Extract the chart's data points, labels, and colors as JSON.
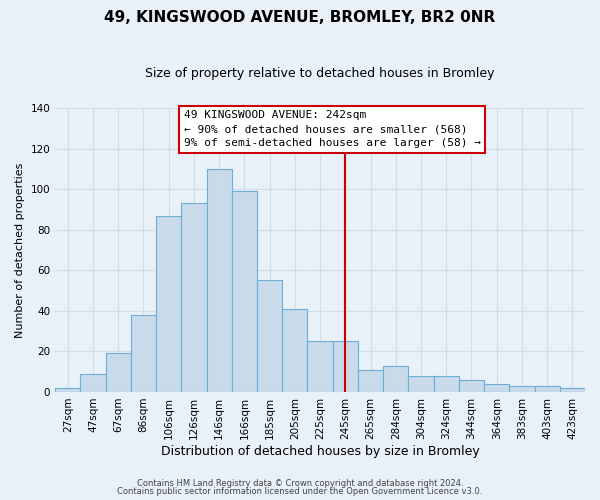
{
  "title": "49, KINGSWOOD AVENUE, BROMLEY, BR2 0NR",
  "subtitle": "Size of property relative to detached houses in Bromley",
  "xlabel": "Distribution of detached houses by size in Bromley",
  "ylabel": "Number of detached properties",
  "bar_labels": [
    "27sqm",
    "47sqm",
    "67sqm",
    "86sqm",
    "106sqm",
    "126sqm",
    "146sqm",
    "166sqm",
    "185sqm",
    "205sqm",
    "225sqm",
    "245sqm",
    "265sqm",
    "284sqm",
    "304sqm",
    "324sqm",
    "344sqm",
    "364sqm",
    "383sqm",
    "403sqm",
    "423sqm"
  ],
  "bar_heights": [
    2,
    9,
    19,
    38,
    87,
    93,
    110,
    99,
    55,
    41,
    25,
    25,
    11,
    13,
    8,
    8,
    6,
    4,
    3,
    3,
    2
  ],
  "bar_color": "#c9daea",
  "bar_edge_color": "#6baed6",
  "vline_index": 11,
  "vline_color": "#cc0000",
  "ylim": [
    0,
    140
  ],
  "yticks": [
    0,
    20,
    40,
    60,
    80,
    100,
    120,
    140
  ],
  "annotation_title": "49 KINGSWOOD AVENUE: 242sqm",
  "annotation_line1": "← 90% of detached houses are smaller (568)",
  "annotation_line2": "9% of semi-detached houses are larger (58) →",
  "annotation_box_facecolor": "#ffffff",
  "annotation_box_edgecolor": "#cc0000",
  "footnote1": "Contains HM Land Registry data © Crown copyright and database right 2024.",
  "footnote2": "Contains public sector information licensed under the Open Government Licence v3.0.",
  "grid_color": "#d0dce8",
  "background_color": "#e8f0f8",
  "title_fontsize": 11,
  "subtitle_fontsize": 9,
  "ylabel_fontsize": 8,
  "xlabel_fontsize": 9,
  "tick_fontsize": 7.5,
  "footnote_fontsize": 6.0,
  "ann_fontsize": 8.0
}
